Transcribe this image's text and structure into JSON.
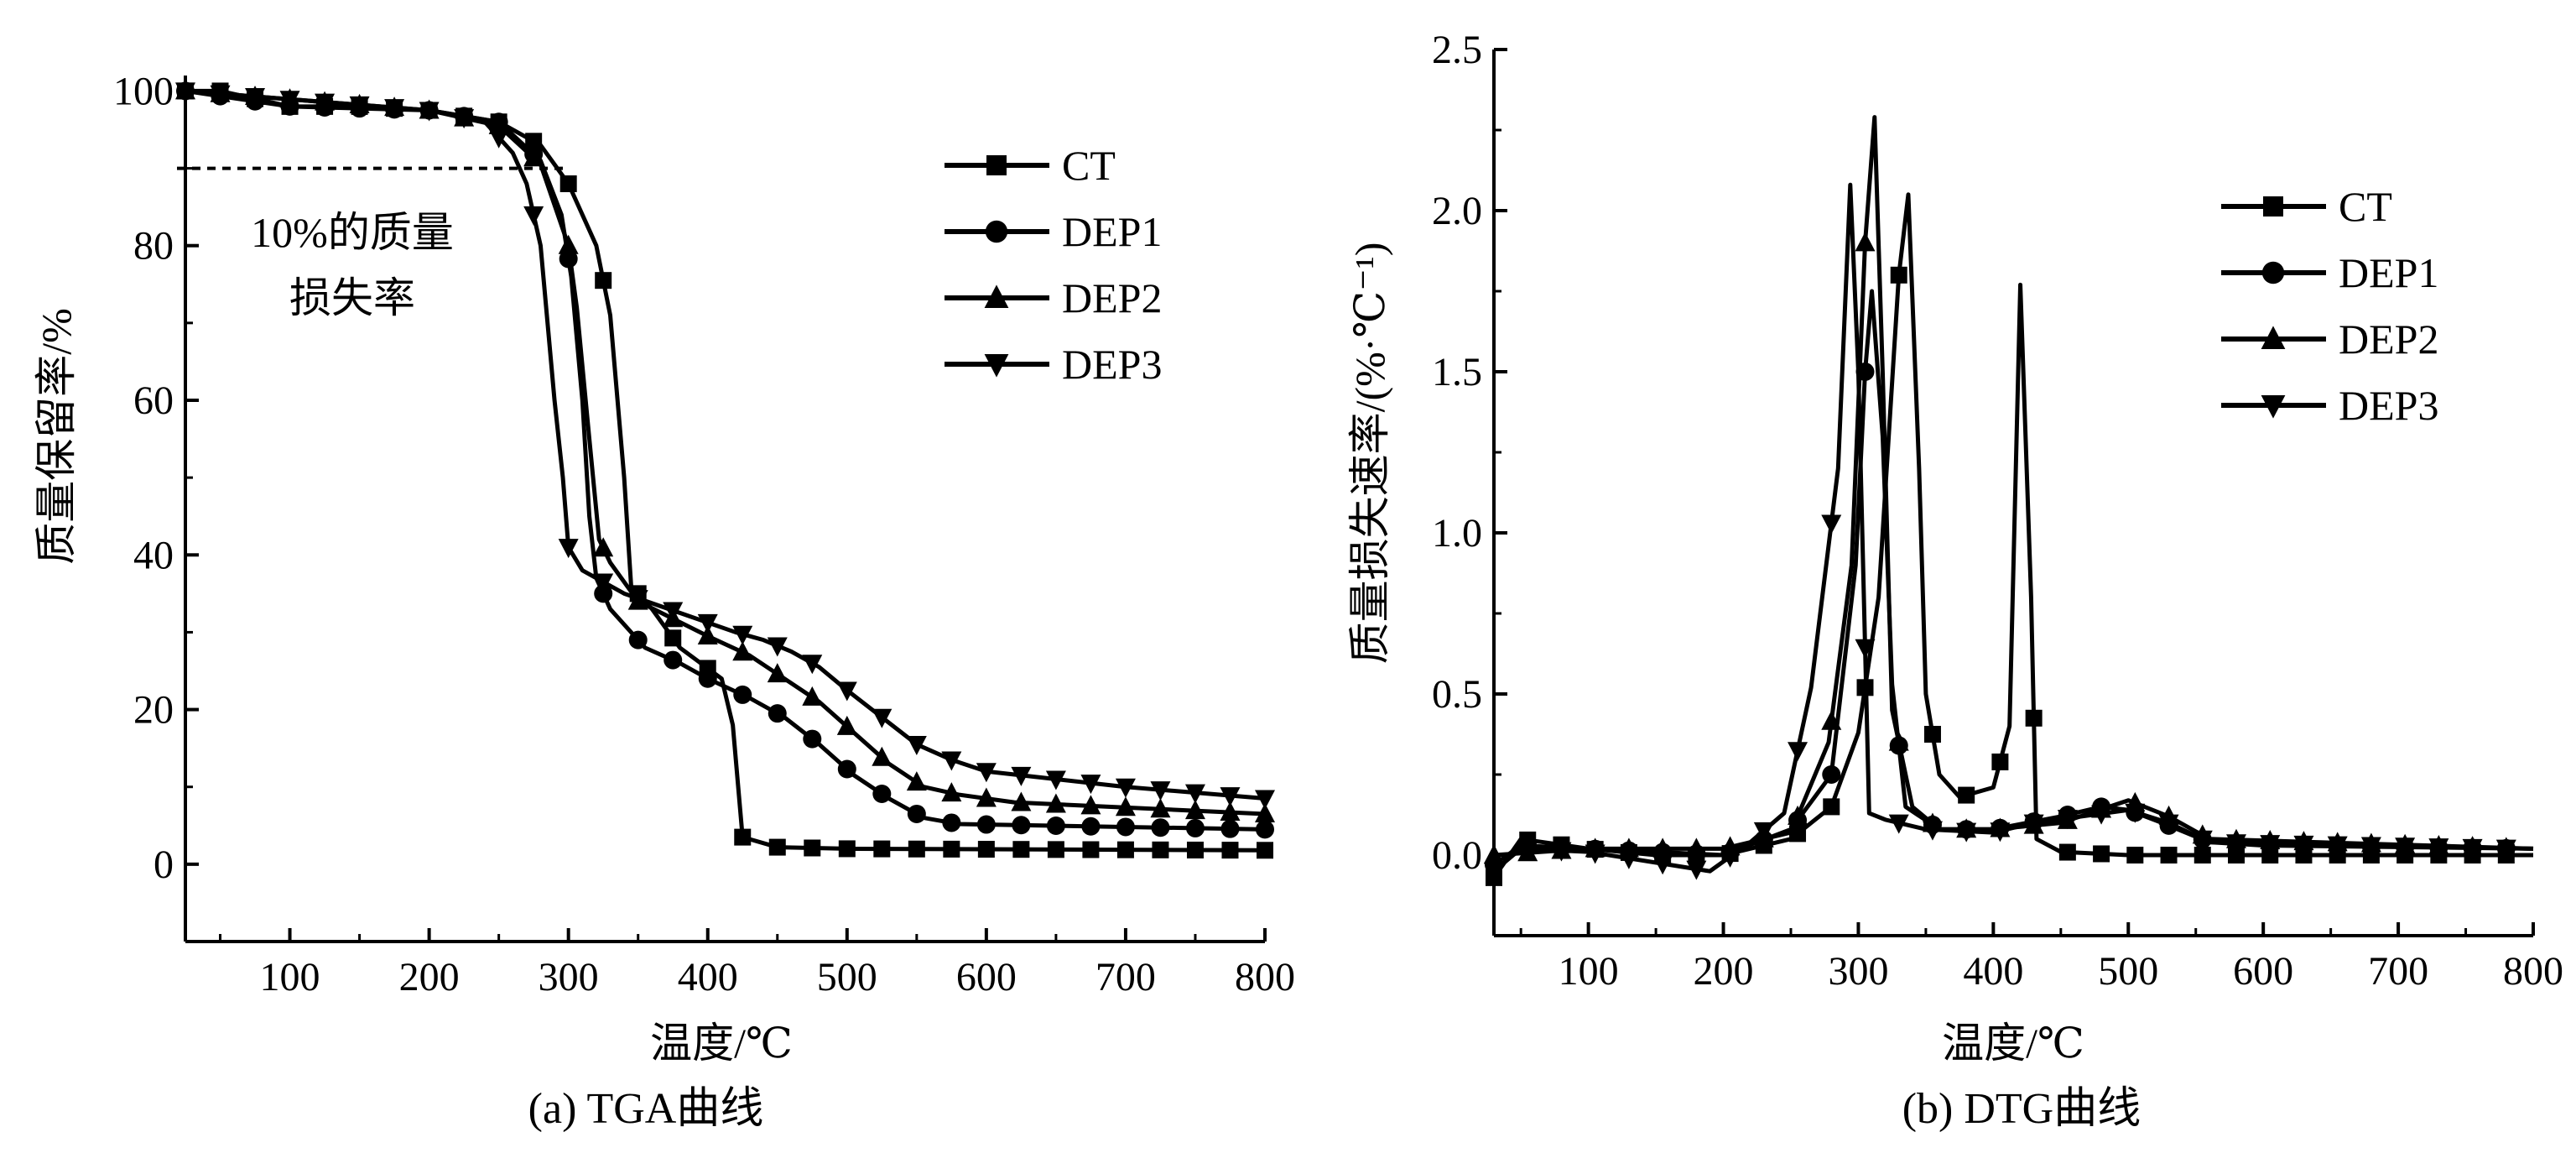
{
  "chart_data": [
    {
      "type": "line",
      "caption": "(a) TGA曲线",
      "xlabel": "温度/℃",
      "ylabel": "质量保留率/%",
      "xlim": [
        25,
        800
      ],
      "ylim": [
        -10,
        102
      ],
      "xticks": [
        100,
        200,
        300,
        400,
        500,
        600,
        700,
        800
      ],
      "yticks": [
        0,
        20,
        40,
        60,
        80,
        100
      ],
      "legend_position": "top-right",
      "annotation": {
        "line1": "10%的质量",
        "line2": "损失率",
        "threshold_y": 90
      },
      "series": [
        {
          "name": "CT",
          "marker": "square",
          "points": [
            [
              25,
              100
            ],
            [
              50,
              100
            ],
            [
              100,
              98
            ],
            [
              150,
              98
            ],
            [
              200,
              97.5
            ],
            [
              250,
              96
            ],
            [
              280,
              93
            ],
            [
              300,
              88
            ],
            [
              320,
              80
            ],
            [
              330,
              71
            ],
            [
              340,
              50
            ],
            [
              345,
              36
            ],
            [
              360,
              33
            ],
            [
              380,
              28
            ],
            [
              410,
              24
            ],
            [
              418,
              18
            ],
            [
              425,
              3.5
            ],
            [
              450,
              2.2
            ],
            [
              500,
              2
            ],
            [
              800,
              1.8
            ]
          ]
        },
        {
          "name": "DEP1",
          "marker": "circle",
          "points": [
            [
              25,
              100
            ],
            [
              100,
              98
            ],
            [
              200,
              97.5
            ],
            [
              250,
              96
            ],
            [
              280,
              91
            ],
            [
              295,
              84
            ],
            [
              302,
              76
            ],
            [
              310,
              60
            ],
            [
              315,
              45
            ],
            [
              320,
              37
            ],
            [
              330,
              33
            ],
            [
              355,
              28
            ],
            [
              380,
              26
            ],
            [
              400,
              24
            ],
            [
              430,
              21.5
            ],
            [
              455,
              19
            ],
            [
              480,
              15.5
            ],
            [
              505,
              11.5
            ],
            [
              530,
              8.5
            ],
            [
              555,
              6
            ],
            [
              580,
              5.2
            ],
            [
              800,
              4.5
            ]
          ]
        },
        {
          "name": "DEP2",
          "marker": "triangle-up",
          "points": [
            [
              25,
              100
            ],
            [
              200,
              97.5
            ],
            [
              250,
              95.5
            ],
            [
              280,
              90.5
            ],
            [
              300,
              80
            ],
            [
              306,
              72
            ],
            [
              315,
              55
            ],
            [
              322,
              42
            ],
            [
              330,
              39
            ],
            [
              350,
              34
            ],
            [
              400,
              29.5
            ],
            [
              430,
              27
            ],
            [
              455,
              24
            ],
            [
              480,
              21
            ],
            [
              505,
              17
            ],
            [
              530,
              13
            ],
            [
              555,
              10
            ],
            [
              580,
              9
            ],
            [
              620,
              8
            ],
            [
              800,
              6.5
            ]
          ]
        },
        {
          "name": "DEP3",
          "marker": "triangle-down",
          "points": [
            [
              25,
              100
            ],
            [
              200,
              97.5
            ],
            [
              240,
              96
            ],
            [
              260,
              92
            ],
            [
              270,
              88
            ],
            [
              280,
              80
            ],
            [
              290,
              60
            ],
            [
              296,
              50
            ],
            [
              300,
              41
            ],
            [
              310,
              38
            ],
            [
              340,
              35
            ],
            [
              380,
              32.5
            ],
            [
              420,
              30
            ],
            [
              440,
              29
            ],
            [
              460,
              27.5
            ],
            [
              480,
              25.5
            ],
            [
              500,
              22.5
            ],
            [
              525,
              19
            ],
            [
              550,
              15.5
            ],
            [
              575,
              13.5
            ],
            [
              600,
              12
            ],
            [
              650,
              11
            ],
            [
              700,
              10
            ],
            [
              800,
              8.5
            ]
          ]
        }
      ]
    },
    {
      "type": "line",
      "caption": "(b) DTG曲线",
      "xlabel": "温度/℃",
      "ylabel": "质量损失速率/(%·℃⁻¹)",
      "xlim": [
        30,
        800
      ],
      "ylim": [
        -0.25,
        2.5
      ],
      "xticks": [
        100,
        200,
        300,
        400,
        500,
        600,
        700,
        800
      ],
      "yticks": [
        0.0,
        0.5,
        1.0,
        1.5,
        2.0,
        2.5
      ],
      "ytick_labels": [
        "0.0",
        "0.5",
        "1.0",
        "1.5",
        "2.0",
        "2.5"
      ],
      "legend_position": "top-right",
      "series": [
        {
          "name": "CT",
          "marker": "square",
          "points": [
            [
              30,
              -0.07
            ],
            [
              50,
              0.05
            ],
            [
              100,
              0.02
            ],
            [
              150,
              0
            ],
            [
              200,
              0
            ],
            [
              250,
              0.05
            ],
            [
              280,
              0.15
            ],
            [
              300,
              0.38
            ],
            [
              315,
              0.8
            ],
            [
              330,
              1.8
            ],
            [
              337,
              2.05
            ],
            [
              345,
              1.2
            ],
            [
              350,
              0.5
            ],
            [
              360,
              0.25
            ],
            [
              375,
              0.18
            ],
            [
              400,
              0.21
            ],
            [
              412,
              0.4
            ],
            [
              420,
              1.77
            ],
            [
              428,
              0.8
            ],
            [
              432,
              0.05
            ],
            [
              450,
              0.01
            ],
            [
              500,
              0
            ],
            [
              800,
              0
            ]
          ]
        },
        {
          "name": "DEP1",
          "marker": "circle",
          "points": [
            [
              30,
              -0.03
            ],
            [
              50,
              0.03
            ],
            [
              100,
              0.02
            ],
            [
              200,
              0
            ],
            [
              250,
              0.08
            ],
            [
              280,
              0.25
            ],
            [
              298,
              0.9
            ],
            [
              305,
              1.5
            ],
            [
              310,
              1.75
            ],
            [
              318,
              1.3
            ],
            [
              325,
              0.53
            ],
            [
              335,
              0.15
            ],
            [
              360,
              0.08
            ],
            [
              400,
              0.08
            ],
            [
              450,
              0.12
            ],
            [
              480,
              0.15
            ],
            [
              500,
              0.14
            ],
            [
              525,
              0.1
            ],
            [
              560,
              0.04
            ],
            [
              600,
              0.03
            ],
            [
              800,
              0.02
            ]
          ]
        },
        {
          "name": "DEP2",
          "marker": "triangle-up",
          "points": [
            [
              30,
              0
            ],
            [
              100,
              0.02
            ],
            [
              200,
              0.02
            ],
            [
              250,
              0.07
            ],
            [
              278,
              0.35
            ],
            [
              295,
              0.9
            ],
            [
              305,
              1.9
            ],
            [
              312,
              2.29
            ],
            [
              318,
              1.5
            ],
            [
              325,
              0.45
            ],
            [
              340,
              0.15
            ],
            [
              360,
              0.08
            ],
            [
              400,
              0.08
            ],
            [
              450,
              0.1
            ],
            [
              500,
              0.17
            ],
            [
              530,
              0.12
            ],
            [
              560,
              0.05
            ],
            [
              800,
              0.02
            ]
          ]
        },
        {
          "name": "DEP3",
          "marker": "triangle-down",
          "points": [
            [
              30,
              -0.05
            ],
            [
              50,
              0.02
            ],
            [
              100,
              0.01
            ],
            [
              190,
              -0.05
            ],
            [
              220,
              0.04
            ],
            [
              245,
              0.13
            ],
            [
              265,
              0.52
            ],
            [
              285,
              1.2
            ],
            [
              294,
              2.08
            ],
            [
              300,
              1.5
            ],
            [
              308,
              0.13
            ],
            [
              320,
              0.11
            ],
            [
              350,
              0.08
            ],
            [
              400,
              0.07
            ],
            [
              430,
              0.1
            ],
            [
              500,
              0.14
            ],
            [
              530,
              0.1
            ],
            [
              560,
              0.04
            ],
            [
              800,
              0.02
            ]
          ]
        }
      ]
    }
  ]
}
